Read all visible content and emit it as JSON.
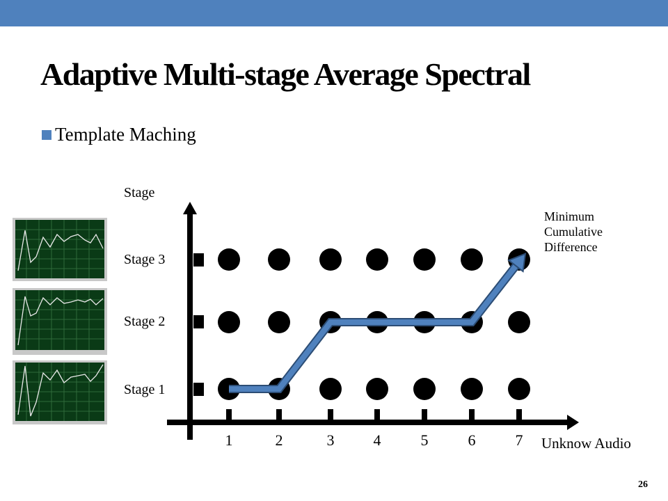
{
  "title": "Adaptive Multi-stage Average Spectral",
  "bullet": "Template Maching",
  "y_axis_label": "Stage",
  "x_axis_label": "Unknow Audio",
  "stages": [
    "Stage 3",
    "Stage 2",
    "Stage 1"
  ],
  "x_ticks": [
    "1",
    "2",
    "3",
    "4",
    "5",
    "6",
    "7"
  ],
  "annotation": [
    "Minimum",
    "Cumulative",
    "Difference"
  ],
  "page_number": "26",
  "path_stages": [
    1,
    1,
    2,
    2,
    2,
    2,
    3
  ],
  "colors": {
    "accent": "#4f81bd",
    "path": "#4f81bd",
    "path_outline": "#2c4d75",
    "dot": "#000000",
    "thumb_bg": "#0a3a16",
    "thumb_line": "#e8e8e8"
  }
}
